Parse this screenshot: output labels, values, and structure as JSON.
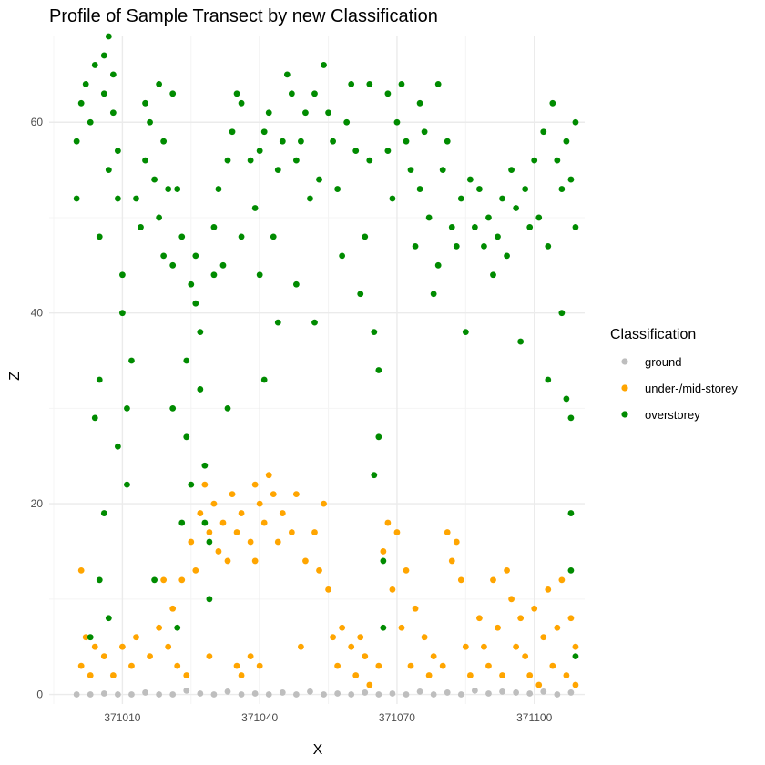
{
  "chart_data": {
    "type": "scatter",
    "title": "Profile of Sample Transect by new Classification",
    "xlabel": "X",
    "ylabel": "Z",
    "xlim": [
      370994,
      371111
    ],
    "ylim": [
      -1,
      69
    ],
    "x_ticks": [
      371010,
      371040,
      371070,
      371100
    ],
    "y_ticks": [
      0,
      20,
      40,
      60
    ],
    "grid": true,
    "legend": {
      "title": "Classification",
      "position": "right",
      "entries": [
        {
          "label": "ground",
          "color": "#bebebe"
        },
        {
          "label": "under-/mid-storey",
          "color": "#ffa500"
        },
        {
          "label": "overstorey",
          "color": "#008b00"
        }
      ]
    },
    "series": [
      {
        "name": "ground",
        "color": "#bebebe",
        "points": [
          [
            371000,
            0
          ],
          [
            371003,
            0
          ],
          [
            371006,
            0.1
          ],
          [
            371009,
            0
          ],
          [
            371012,
            0
          ],
          [
            371015,
            0.2
          ],
          [
            371018,
            0
          ],
          [
            371021,
            0
          ],
          [
            371024,
            0.4
          ],
          [
            371027,
            0.1
          ],
          [
            371030,
            0
          ],
          [
            371033,
            0.3
          ],
          [
            371036,
            0
          ],
          [
            371039,
            0.1
          ],
          [
            371042,
            0
          ],
          [
            371045,
            0.2
          ],
          [
            371048,
            0
          ],
          [
            371051,
            0.3
          ],
          [
            371054,
            0
          ],
          [
            371057,
            0.1
          ],
          [
            371060,
            0
          ],
          [
            371063,
            0.2
          ],
          [
            371066,
            0
          ],
          [
            371069,
            0.1
          ],
          [
            371072,
            0
          ],
          [
            371075,
            0.3
          ],
          [
            371078,
            0
          ],
          [
            371081,
            0.2
          ],
          [
            371084,
            0
          ],
          [
            371087,
            0.4
          ],
          [
            371090,
            0.1
          ],
          [
            371093,
            0.3
          ],
          [
            371096,
            0.2
          ],
          [
            371099,
            0.1
          ],
          [
            371102,
            0.3
          ],
          [
            371105,
            0
          ],
          [
            371108,
            0.2
          ]
        ]
      },
      {
        "name": "under-/mid-storey",
        "color": "#ffa500",
        "points": [
          [
            371001,
            3
          ],
          [
            371002,
            6
          ],
          [
            371003,
            2
          ],
          [
            371004,
            5
          ],
          [
            371006,
            4
          ],
          [
            371008,
            2
          ],
          [
            371010,
            5
          ],
          [
            371012,
            3
          ],
          [
            371013,
            6
          ],
          [
            371001,
            13
          ],
          [
            371016,
            4
          ],
          [
            371018,
            7
          ],
          [
            371020,
            5
          ],
          [
            371022,
            3
          ],
          [
            371024,
            2
          ],
          [
            371019,
            12
          ],
          [
            371021,
            9
          ],
          [
            371023,
            12
          ],
          [
            371025,
            16
          ],
          [
            371027,
            19
          ],
          [
            371028,
            22
          ],
          [
            371029,
            17
          ],
          [
            371030,
            20
          ],
          [
            371031,
            15
          ],
          [
            371032,
            18
          ],
          [
            371033,
            14
          ],
          [
            371034,
            21
          ],
          [
            371035,
            17
          ],
          [
            371036,
            19
          ],
          [
            371038,
            16
          ],
          [
            371039,
            22
          ],
          [
            371040,
            20
          ],
          [
            371041,
            18
          ],
          [
            371042,
            23
          ],
          [
            371043,
            21
          ],
          [
            371044,
            16
          ],
          [
            371045,
            19
          ],
          [
            371047,
            17
          ],
          [
            371048,
            21
          ],
          [
            371026,
            13
          ],
          [
            371029,
            4
          ],
          [
            371035,
            3
          ],
          [
            371039,
            14
          ],
          [
            371036,
            2
          ],
          [
            371038,
            4
          ],
          [
            371040,
            3
          ],
          [
            371049,
            5
          ],
          [
            371050,
            14
          ],
          [
            371052,
            17
          ],
          [
            371053,
            13
          ],
          [
            371054,
            20
          ],
          [
            371055,
            11
          ],
          [
            371056,
            6
          ],
          [
            371057,
            3
          ],
          [
            371058,
            7
          ],
          [
            371060,
            5
          ],
          [
            371061,
            2
          ],
          [
            371062,
            6
          ],
          [
            371063,
            4
          ],
          [
            371064,
            1
          ],
          [
            371066,
            3
          ],
          [
            371067,
            15
          ],
          [
            371068,
            18
          ],
          [
            371069,
            11
          ],
          [
            371070,
            17
          ],
          [
            371071,
            7
          ],
          [
            371072,
            13
          ],
          [
            371073,
            3
          ],
          [
            371074,
            9
          ],
          [
            371076,
            6
          ],
          [
            371077,
            2
          ],
          [
            371078,
            4
          ],
          [
            371080,
            3
          ],
          [
            371081,
            17
          ],
          [
            371082,
            14
          ],
          [
            371083,
            16
          ],
          [
            371084,
            12
          ],
          [
            371085,
            5
          ],
          [
            371086,
            2
          ],
          [
            371088,
            8
          ],
          [
            371089,
            5
          ],
          [
            371090,
            3
          ],
          [
            371091,
            12
          ],
          [
            371092,
            7
          ],
          [
            371093,
            2
          ],
          [
            371094,
            13
          ],
          [
            371095,
            10
          ],
          [
            371096,
            5
          ],
          [
            371097,
            8
          ],
          [
            371098,
            4
          ],
          [
            371099,
            2
          ],
          [
            371100,
            9
          ],
          [
            371101,
            1
          ],
          [
            371102,
            6
          ],
          [
            371103,
            11
          ],
          [
            371104,
            3
          ],
          [
            371105,
            7
          ],
          [
            371106,
            12
          ],
          [
            371107,
            2
          ],
          [
            371108,
            8
          ],
          [
            371109,
            5
          ],
          [
            371109,
            1
          ]
        ]
      },
      {
        "name": "overstorey",
        "color": "#008b00",
        "points": [
          [
            371000,
            52
          ],
          [
            371000,
            58
          ],
          [
            371001,
            62
          ],
          [
            371002,
            64
          ],
          [
            371003,
            60
          ],
          [
            371004,
            66
          ],
          [
            371004,
            29
          ],
          [
            371005,
            48
          ],
          [
            371005,
            33
          ],
          [
            371006,
            63
          ],
          [
            371006,
            67
          ],
          [
            371007,
            55
          ],
          [
            371007,
            69
          ],
          [
            371008,
            61
          ],
          [
            371008,
            65
          ],
          [
            371009,
            52
          ],
          [
            371009,
            57
          ],
          [
            371010,
            44
          ],
          [
            371010,
            40
          ],
          [
            371011,
            30
          ],
          [
            371011,
            22
          ],
          [
            371005,
            12
          ],
          [
            371007,
            8
          ],
          [
            371006,
            19
          ],
          [
            371009,
            26
          ],
          [
            371003,
            6
          ],
          [
            371012,
            35
          ],
          [
            371013,
            52
          ],
          [
            371014,
            49
          ],
          [
            371015,
            62
          ],
          [
            371015,
            56
          ],
          [
            371016,
            60
          ],
          [
            371017,
            54
          ],
          [
            371018,
            64
          ],
          [
            371018,
            50
          ],
          [
            371019,
            58
          ],
          [
            371019,
            46
          ],
          [
            371020,
            53
          ],
          [
            371021,
            45
          ],
          [
            371021,
            63
          ],
          [
            371022,
            53
          ],
          [
            371023,
            48
          ],
          [
            371024,
            27
          ],
          [
            371024,
            35
          ],
          [
            371025,
            43
          ],
          [
            371025,
            22
          ],
          [
            371026,
            46
          ],
          [
            371026,
            41
          ],
          [
            371027,
            38
          ],
          [
            371027,
            32
          ],
          [
            371028,
            24
          ],
          [
            371028,
            18
          ],
          [
            371029,
            16
          ],
          [
            371029,
            10
          ],
          [
            371021,
            30
          ],
          [
            371023,
            18
          ],
          [
            371017,
            12
          ],
          [
            371022,
            7
          ],
          [
            371030,
            49
          ],
          [
            371030,
            44
          ],
          [
            371031,
            53
          ],
          [
            371032,
            45
          ],
          [
            371033,
            56
          ],
          [
            371033,
            30
          ],
          [
            371034,
            59
          ],
          [
            371035,
            63
          ],
          [
            371036,
            62
          ],
          [
            371036,
            48
          ],
          [
            371038,
            56
          ],
          [
            371039,
            51
          ],
          [
            371040,
            57
          ],
          [
            371040,
            44
          ],
          [
            371041,
            33
          ],
          [
            371041,
            59
          ],
          [
            371042,
            61
          ],
          [
            371043,
            48
          ],
          [
            371044,
            55
          ],
          [
            371044,
            39
          ],
          [
            371045,
            58
          ],
          [
            371046,
            65
          ],
          [
            371047,
            63
          ],
          [
            371048,
            56
          ],
          [
            371048,
            43
          ],
          [
            371049,
            58
          ],
          [
            371050,
            61
          ],
          [
            371051,
            52
          ],
          [
            371052,
            63
          ],
          [
            371052,
            39
          ],
          [
            371053,
            54
          ],
          [
            371054,
            66
          ],
          [
            371055,
            61
          ],
          [
            371056,
            58
          ],
          [
            371057,
            53
          ],
          [
            371058,
            46
          ],
          [
            371059,
            60
          ],
          [
            371060,
            64
          ],
          [
            371061,
            57
          ],
          [
            371062,
            42
          ],
          [
            371063,
            48
          ],
          [
            371064,
            56
          ],
          [
            371064,
            64
          ],
          [
            371065,
            38
          ],
          [
            371065,
            23
          ],
          [
            371066,
            34
          ],
          [
            371066,
            27
          ],
          [
            371067,
            14
          ],
          [
            371067,
            7
          ],
          [
            371068,
            57
          ],
          [
            371068,
            63
          ],
          [
            371069,
            52
          ],
          [
            371070,
            60
          ],
          [
            371071,
            64
          ],
          [
            371072,
            58
          ],
          [
            371073,
            55
          ],
          [
            371074,
            47
          ],
          [
            371075,
            62
          ],
          [
            371075,
            53
          ],
          [
            371076,
            59
          ],
          [
            371077,
            50
          ],
          [
            371078,
            42
          ],
          [
            371079,
            64
          ],
          [
            371079,
            45
          ],
          [
            371080,
            55
          ],
          [
            371081,
            58
          ],
          [
            371082,
            49
          ],
          [
            371083,
            47
          ],
          [
            371084,
            52
          ],
          [
            371085,
            38
          ],
          [
            371086,
            54
          ],
          [
            371087,
            49
          ],
          [
            371088,
            53
          ],
          [
            371089,
            47
          ],
          [
            371090,
            50
          ],
          [
            371091,
            44
          ],
          [
            371092,
            48
          ],
          [
            371093,
            52
          ],
          [
            371094,
            46
          ],
          [
            371095,
            55
          ],
          [
            371096,
            51
          ],
          [
            371097,
            37
          ],
          [
            371098,
            53
          ],
          [
            371099,
            49
          ],
          [
            371100,
            56
          ],
          [
            371101,
            50
          ],
          [
            371102,
            59
          ],
          [
            371103,
            33
          ],
          [
            371103,
            47
          ],
          [
            371104,
            62
          ],
          [
            371105,
            56
          ],
          [
            371106,
            40
          ],
          [
            371106,
            53
          ],
          [
            371107,
            31
          ],
          [
            371107,
            58
          ],
          [
            371108,
            54
          ],
          [
            371108,
            29
          ],
          [
            371109,
            60
          ],
          [
            371109,
            49
          ],
          [
            371108,
            19
          ],
          [
            371108,
            13
          ],
          [
            371109,
            4
          ]
        ]
      }
    ]
  }
}
